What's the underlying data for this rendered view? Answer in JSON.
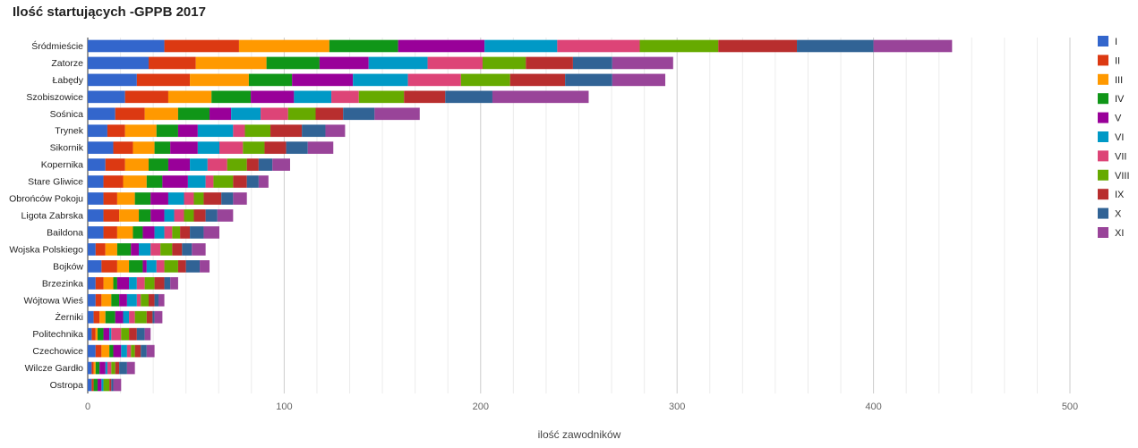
{
  "chart_data": {
    "type": "bar",
    "orientation": "horizontal",
    "stacked": true,
    "title": "Ilość startujących -GPPB 2017",
    "xlabel": "ilość zawodników",
    "ylabel": "",
    "xlim": [
      0,
      500
    ],
    "xticks": [
      0,
      100,
      200,
      300,
      400,
      500
    ],
    "grid": true,
    "legend_position": "right",
    "categories": [
      "Śródmieście",
      "Zatorze",
      "Łabędy",
      "Szobiszowice",
      "Sośnica",
      "Trynek",
      "Sikornik",
      "Kopernika",
      "Stare Gliwice",
      "Obrońców Pokoju",
      "Ligota Zabrska",
      "Baildona",
      "Wojska Polskiego",
      "Bojków",
      "Brzezinka",
      "Wójtowa Wieś",
      "Żerniki",
      "Politechnika",
      "Czechowice",
      "Wilcze Gardło",
      "Ostropa"
    ],
    "series": [
      {
        "name": "I",
        "color": "#3366cc",
        "values": [
          39,
          31,
          25,
          19,
          14,
          10,
          13,
          9,
          8,
          8,
          8,
          8,
          4,
          7,
          4,
          4,
          3,
          2,
          4,
          2,
          2
        ]
      },
      {
        "name": "II",
        "color": "#dc3912",
        "values": [
          38,
          24,
          27,
          22,
          15,
          9,
          10,
          10,
          10,
          7,
          8,
          7,
          5,
          8,
          4,
          3,
          3,
          2,
          3,
          1,
          1
        ]
      },
      {
        "name": "III",
        "color": "#ff9900",
        "values": [
          46,
          36,
          30,
          22,
          17,
          16,
          11,
          12,
          12,
          9,
          10,
          8,
          6,
          6,
          5,
          5,
          3,
          1,
          4,
          1,
          0
        ]
      },
      {
        "name": "IV",
        "color": "#109618",
        "values": [
          35,
          27,
          22,
          20,
          16,
          11,
          8,
          10,
          8,
          8,
          6,
          5,
          7,
          7,
          2,
          4,
          5,
          3,
          2,
          2,
          2
        ]
      },
      {
        "name": "V",
        "color": "#990099",
        "values": [
          44,
          25,
          31,
          22,
          11,
          10,
          14,
          11,
          13,
          9,
          7,
          6,
          4,
          2,
          6,
          4,
          4,
          3,
          4,
          3,
          2
        ]
      },
      {
        "name": "VI",
        "color": "#0099c6",
        "values": [
          37,
          30,
          28,
          19,
          15,
          18,
          11,
          9,
          9,
          8,
          5,
          5,
          6,
          5,
          4,
          5,
          3,
          1,
          3,
          1,
          1
        ]
      },
      {
        "name": "VII",
        "color": "#dd4477",
        "values": [
          42,
          28,
          27,
          14,
          14,
          6,
          12,
          10,
          4,
          5,
          5,
          4,
          5,
          4,
          4,
          2,
          3,
          5,
          2,
          2,
          0
        ]
      },
      {
        "name": "VIII",
        "color": "#66aa00",
        "values": [
          40,
          22,
          25,
          23,
          14,
          13,
          11,
          10,
          10,
          5,
          5,
          4,
          6,
          7,
          5,
          4,
          6,
          4,
          2,
          2,
          3
        ]
      },
      {
        "name": "IX",
        "color": "#b82e2e",
        "values": [
          40,
          24,
          28,
          21,
          14,
          16,
          11,
          6,
          7,
          9,
          6,
          5,
          5,
          4,
          5,
          3,
          3,
          4,
          3,
          2,
          1
        ]
      },
      {
        "name": "X",
        "color": "#316395",
        "values": [
          39,
          20,
          24,
          24,
          16,
          12,
          11,
          7,
          6,
          6,
          6,
          7,
          5,
          7,
          3,
          2,
          1,
          4,
          3,
          4,
          1
        ]
      },
      {
        "name": "XI",
        "color": "#994499",
        "values": [
          40,
          31,
          27,
          49,
          23,
          10,
          13,
          9,
          5,
          7,
          8,
          8,
          7,
          5,
          4,
          3,
          4,
          3,
          4,
          4,
          4
        ]
      }
    ]
  }
}
